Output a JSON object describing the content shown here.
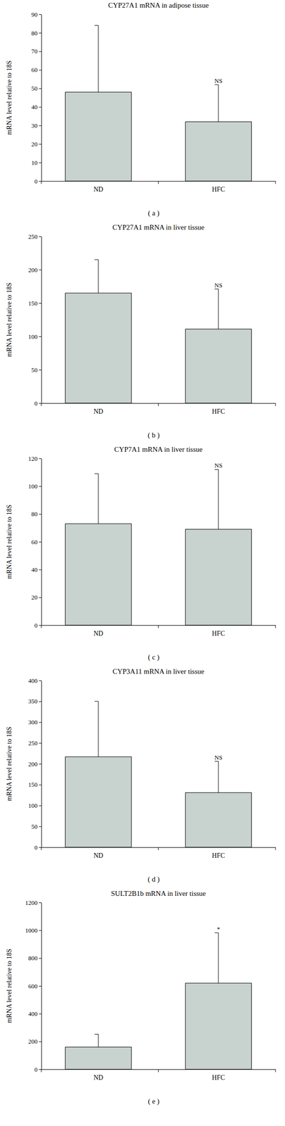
{
  "chart_data": [
    {
      "type": "bar",
      "title": "CYP27A1 mRNA in adipose tissue",
      "subtitle": "( a )",
      "y_label": "mRNA level relative to 18S",
      "categories": [
        "ND",
        "HFC"
      ],
      "values": [
        48,
        32
      ],
      "errors": [
        36,
        20
      ],
      "color": "#c8d2cf",
      "ylim": [
        0,
        90
      ],
      "yticks": [
        0,
        10,
        20,
        30,
        40,
        50,
        60,
        70,
        80,
        90
      ],
      "grid": false,
      "annotations": [
        {
          "category": "HFC",
          "text": "NS"
        }
      ]
    },
    {
      "type": "bar",
      "title": "CYP27A1 mRNA in liver tissue",
      "subtitle": "( b )",
      "y_label": "mRNA level relative to 18S",
      "categories": [
        "ND",
        "HFC"
      ],
      "values": [
        165,
        111
      ],
      "errors": [
        50,
        60
      ],
      "color": "#c8d2cf",
      "ylim": [
        0,
        250
      ],
      "yticks": [
        0,
        50,
        100,
        150,
        200,
        250
      ],
      "grid": false,
      "annotations": [
        {
          "category": "HFC",
          "text": "NS"
        }
      ]
    },
    {
      "type": "bar",
      "title": "CYP7A1 mRNA in liver tissue",
      "subtitle": "( c )",
      "y_label": "mRNA level relative to 18S",
      "categories": [
        "ND",
        "HFC"
      ],
      "values": [
        73,
        69
      ],
      "errors": [
        36,
        43
      ],
      "color": "#c8d2cf",
      "ylim": [
        0,
        120
      ],
      "yticks": [
        0,
        20,
        40,
        60,
        80,
        100,
        120
      ],
      "grid": false,
      "annotations": [
        {
          "category": "HFC",
          "text": "NS"
        }
      ]
    },
    {
      "type": "bar",
      "title": "CYP3A11 mRNA in liver tissue",
      "subtitle": "( d )",
      "y_label": "mRNA level relative to 18S",
      "categories": [
        "ND",
        "HFC"
      ],
      "values": [
        217,
        131
      ],
      "errors": [
        133,
        75
      ],
      "color": "#c8d2cf",
      "ylim": [
        0,
        400
      ],
      "yticks": [
        0,
        50,
        100,
        150,
        200,
        250,
        300,
        350,
        400
      ],
      "grid": false,
      "annotations": [
        {
          "category": "HFC",
          "text": "NS"
        }
      ]
    },
    {
      "type": "bar",
      "title": "SULT2B1b mRNA in liver tissue",
      "subtitle": "( e )",
      "y_label": "mRNA level relative to 18S",
      "categories": [
        "ND",
        "HFC"
      ],
      "values": [
        160,
        620
      ],
      "errors": [
        92,
        362
      ],
      "color": "#c8d2cf",
      "ylim": [
        0,
        1200
      ],
      "yticks": [
        0,
        200,
        400,
        600,
        800,
        1000,
        1200
      ],
      "grid": false,
      "annotations": [
        {
          "category": "HFC",
          "text": "*"
        }
      ]
    }
  ]
}
